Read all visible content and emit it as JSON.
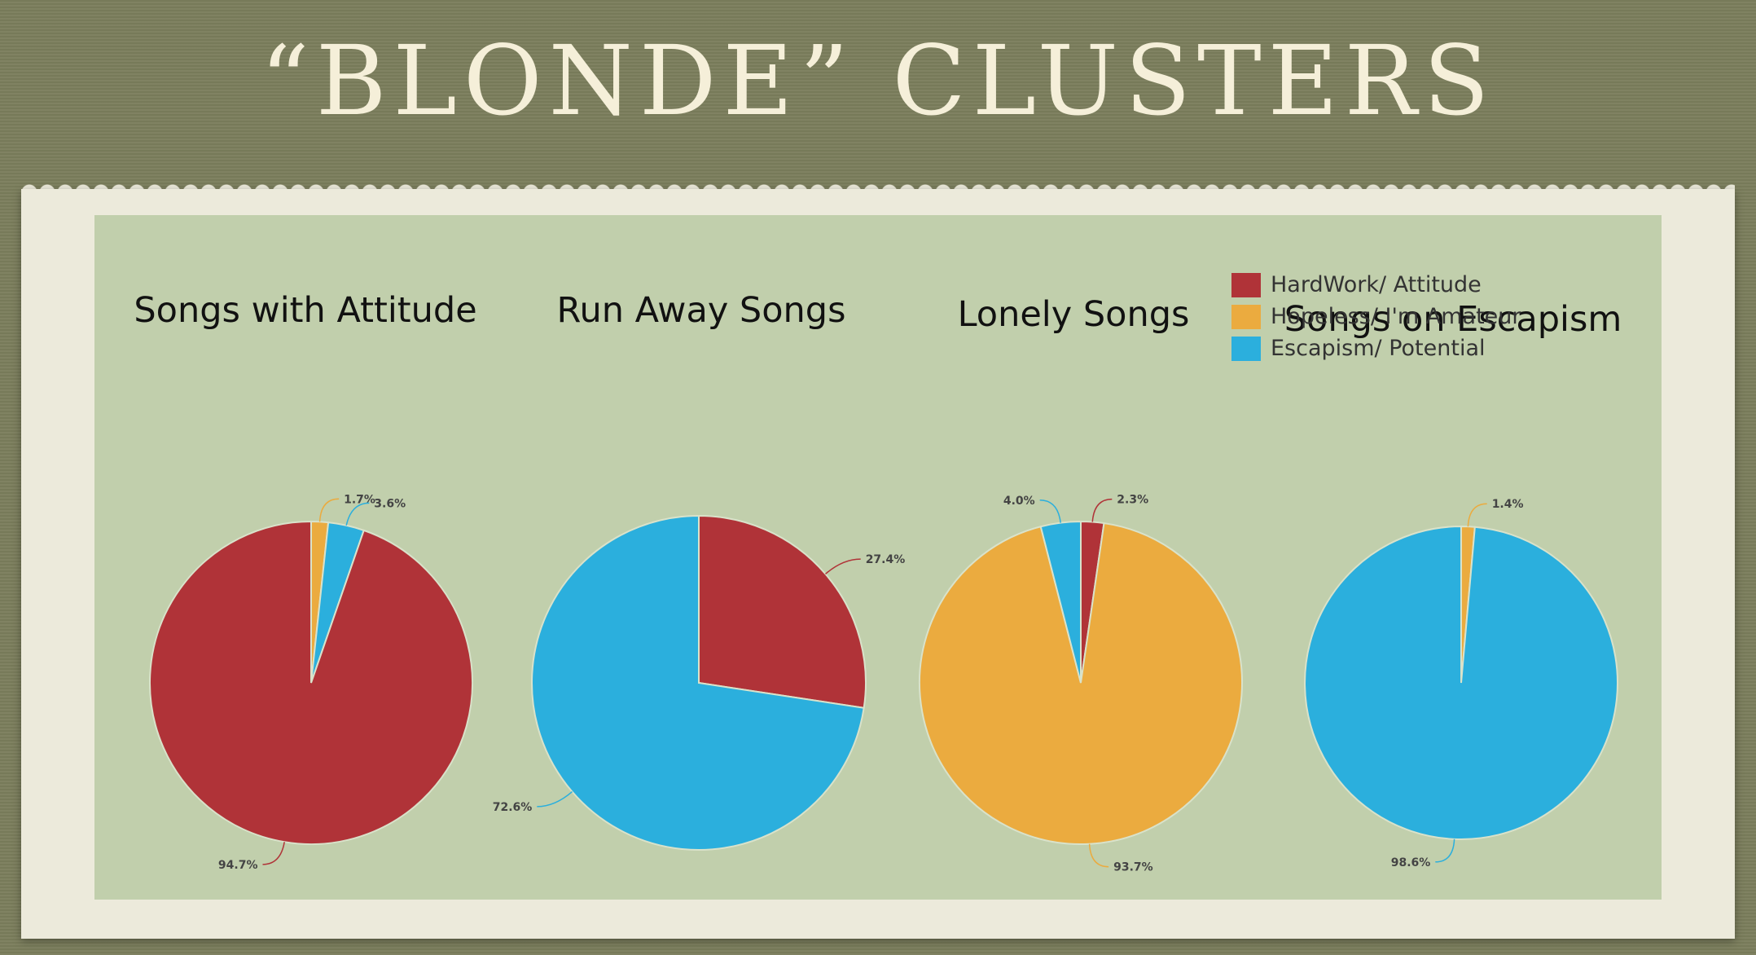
{
  "slide": {
    "title": "“BLONDE” CLUSTERS"
  },
  "legend": {
    "items": [
      {
        "label": "HardWork/ Attitude",
        "color": "#b03338"
      },
      {
        "label": "Hopeless/ I'm Amateur",
        "color": "#ebab3f"
      },
      {
        "label": "Escapism/ Potential",
        "color": "#2bafdd"
      }
    ]
  },
  "chart_data": [
    {
      "type": "pie",
      "title": "Songs with Attitude",
      "slices": [
        {
          "category": "HardWork/ Attitude",
          "value": 94.7,
          "label": "94.7%"
        },
        {
          "category": "Hopeless/ I'm Amateur",
          "value": 1.7,
          "label": "1.7%"
        },
        {
          "category": "Escapism/ Potential",
          "value": 3.6,
          "label": "3.6%"
        }
      ]
    },
    {
      "type": "pie",
      "title": "Run Away Songs",
      "slices": [
        {
          "category": "HardWork/ Attitude",
          "value": 27.4,
          "label": "27.4%"
        },
        {
          "category": "Escapism/ Potential",
          "value": 72.6,
          "label": "72.6%"
        }
      ]
    },
    {
      "type": "pie",
      "title": "Lonely Songs",
      "slices": [
        {
          "category": "HardWork/ Attitude",
          "value": 2.3,
          "label": "2.3%"
        },
        {
          "category": "Hopeless/ I'm Amateur",
          "value": 93.7,
          "label": "93.7%"
        },
        {
          "category": "Escapism/ Potential",
          "value": 4.0,
          "label": "4.0%"
        }
      ]
    },
    {
      "type": "pie",
      "title": "Songs on Escapism",
      "slices": [
        {
          "category": "Hopeless/ I'm Amateur",
          "value": 1.4,
          "label": "1.4%"
        },
        {
          "category": "Escapism/ Potential",
          "value": 98.6,
          "label": "98.6%"
        }
      ]
    }
  ]
}
